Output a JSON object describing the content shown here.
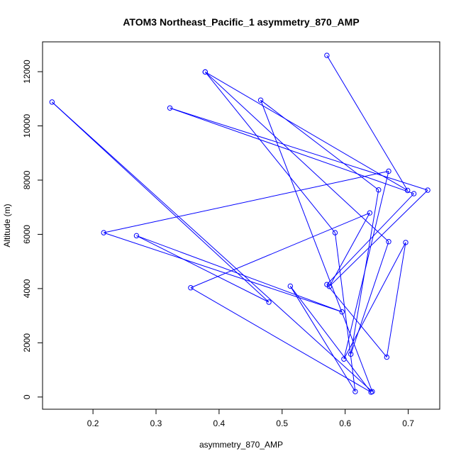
{
  "chart_data": {
    "type": "line",
    "title": "ATOM3 Northeast_Pacific_1 asymmetry_870_AMP",
    "xlabel": "asymmetry_870_AMP",
    "ylabel": "Altitude (m)",
    "xlim": [
      0.12,
      0.75
    ],
    "ylim": [
      -450,
      13100
    ],
    "x_ticks": [
      "0.2",
      "0.3",
      "0.4",
      "0.5",
      "0.6",
      "0.7"
    ],
    "y_ticks": [
      "0",
      "2000",
      "4000",
      "6000",
      "8000",
      "10000",
      "12000"
    ],
    "grid": false,
    "legend": "none",
    "series": [
      {
        "color": "#0000ff",
        "markers": "open-circle",
        "points": [
          {
            "x": 0.571,
            "y": 12600
          },
          {
            "x": 0.699,
            "y": 7620
          },
          {
            "x": 0.378,
            "y": 11990
          },
          {
            "x": 0.669,
            "y": 5730
          },
          {
            "x": 0.609,
            "y": 1580
          },
          {
            "x": 0.653,
            "y": 7640
          },
          {
            "x": 0.466,
            "y": 10950
          },
          {
            "x": 0.643,
            "y": 200
          },
          {
            "x": 0.135,
            "y": 10880
          },
          {
            "x": 0.479,
            "y": 3500
          },
          {
            "x": 0.269,
            "y": 5950
          },
          {
            "x": 0.595,
            "y": 3140
          },
          {
            "x": 0.217,
            "y": 6060
          },
          {
            "x": 0.669,
            "y": 8330
          },
          {
            "x": 0.598,
            "y": 1400
          },
          {
            "x": 0.696,
            "y": 5700
          },
          {
            "x": 0.666,
            "y": 1470
          },
          {
            "x": 0.571,
            "y": 4150
          },
          {
            "x": 0.709,
            "y": 7500
          },
          {
            "x": 0.322,
            "y": 10660
          },
          {
            "x": 0.731,
            "y": 7630
          },
          {
            "x": 0.575,
            "y": 4080
          },
          {
            "x": 0.639,
            "y": 6790
          },
          {
            "x": 0.355,
            "y": 4030
          },
          {
            "x": 0.641,
            "y": 180
          },
          {
            "x": 0.513,
            "y": 4090
          },
          {
            "x": 0.616,
            "y": 200
          },
          {
            "x": 0.584,
            "y": 6060
          },
          {
            "x": 0.378,
            "y": 11990
          }
        ]
      }
    ]
  }
}
